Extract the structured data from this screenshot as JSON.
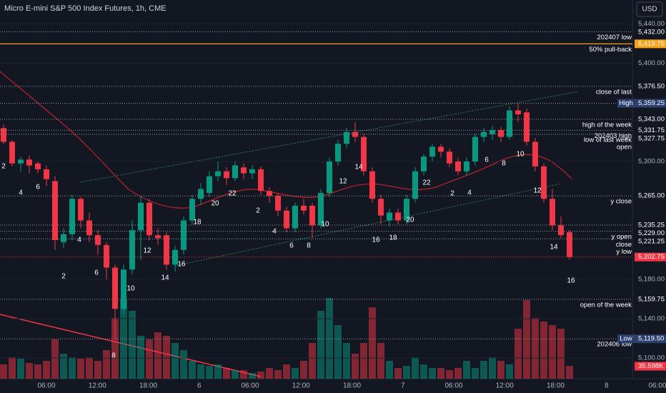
{
  "chart_data": {
    "type": "candlestick",
    "title": "Micro E-mini S&P 500 Index Futures, 1h, CME",
    "currency": "USD",
    "up_color": "#089981",
    "down_color": "#f23645",
    "candles": [
      {
        "open": 5334,
        "high": 5338,
        "low": 5318,
        "close": 5320
      },
      {
        "open": 5320,
        "high": 5322,
        "low": 5295,
        "close": 5298
      },
      {
        "open": 5298,
        "high": 5305,
        "low": 5290,
        "close": 5302
      },
      {
        "open": 5302,
        "high": 5306,
        "low": 5288,
        "close": 5296
      },
      {
        "open": 5298,
        "high": 5300,
        "low": 5288,
        "close": 5292
      },
      {
        "open": 5292,
        "high": 5296,
        "low": 5275,
        "close": 5282
      },
      {
        "open": 5280,
        "high": 5285,
        "low": 5210,
        "close": 5220
      },
      {
        "open": 5218,
        "high": 5232,
        "low": 5212,
        "close": 5226
      },
      {
        "open": 5226,
        "high": 5266,
        "low": 5220,
        "close": 5262
      },
      {
        "open": 5262,
        "high": 5264,
        "low": 5232,
        "close": 5240
      },
      {
        "open": 5240,
        "high": 5248,
        "low": 5218,
        "close": 5225
      },
      {
        "open": 5225,
        "high": 5230,
        "low": 5205,
        "close": 5215
      },
      {
        "open": 5215,
        "high": 5218,
        "low": 5180,
        "close": 5192
      },
      {
        "open": 5192,
        "high": 5195,
        "low": 5119.5,
        "close": 5150
      },
      {
        "open": 5150,
        "high": 5195,
        "low": 5145,
        "close": 5190
      },
      {
        "open": 5190,
        "high": 5240,
        "low": 5185,
        "close": 5230
      },
      {
        "open": 5230,
        "high": 5265,
        "low": 5200,
        "close": 5258
      },
      {
        "open": 5258,
        "high": 5262,
        "low": 5220,
        "close": 5225
      },
      {
        "open": 5225,
        "high": 5232,
        "low": 5215,
        "close": 5222
      },
      {
        "open": 5225,
        "high": 5228,
        "low": 5190,
        "close": 5195
      },
      {
        "open": 5195,
        "high": 5214,
        "low": 5188,
        "close": 5210
      },
      {
        "open": 5210,
        "high": 5244,
        "low": 5205,
        "close": 5240
      },
      {
        "open": 5240,
        "high": 5266,
        "low": 5236,
        "close": 5262
      },
      {
        "open": 5262,
        "high": 5278,
        "low": 5256,
        "close": 5272
      },
      {
        "open": 5268,
        "high": 5290,
        "low": 5264,
        "close": 5285
      },
      {
        "open": 5285,
        "high": 5300,
        "low": 5280,
        "close": 5290
      },
      {
        "open": 5290,
        "high": 5294,
        "low": 5276,
        "close": 5283
      },
      {
        "open": 5283,
        "high": 5300,
        "low": 5280,
        "close": 5296
      },
      {
        "open": 5294,
        "high": 5298,
        "low": 5282,
        "close": 5288
      },
      {
        "open": 5288,
        "high": 5296,
        "low": 5282,
        "close": 5292
      },
      {
        "open": 5292,
        "high": 5295,
        "low": 5266,
        "close": 5270
      },
      {
        "open": 5270,
        "high": 5274,
        "low": 5258,
        "close": 5265
      },
      {
        "open": 5265,
        "high": 5268,
        "low": 5244,
        "close": 5250
      },
      {
        "open": 5250,
        "high": 5254,
        "low": 5228,
        "close": 5232
      },
      {
        "open": 5232,
        "high": 5258,
        "low": 5228,
        "close": 5255
      },
      {
        "open": 5255,
        "high": 5262,
        "low": 5246,
        "close": 5250
      },
      {
        "open": 5255,
        "high": 5258,
        "low": 5222,
        "close": 5235
      },
      {
        "open": 5235,
        "high": 5272,
        "low": 5232,
        "close": 5268
      },
      {
        "open": 5268,
        "high": 5304,
        "low": 5264,
        "close": 5300
      },
      {
        "open": 5300,
        "high": 5322,
        "low": 5296,
        "close": 5318
      },
      {
        "open": 5318,
        "high": 5334,
        "low": 5314,
        "close": 5330
      },
      {
        "open": 5330,
        "high": 5340,
        "low": 5320,
        "close": 5325
      },
      {
        "open": 5325,
        "high": 5328,
        "low": 5286,
        "close": 5290
      },
      {
        "open": 5290,
        "high": 5294,
        "low": 5258,
        "close": 5262
      },
      {
        "open": 5262,
        "high": 5266,
        "low": 5236,
        "close": 5245
      },
      {
        "open": 5240,
        "high": 5252,
        "low": 5234,
        "close": 5248
      },
      {
        "open": 5248,
        "high": 5252,
        "low": 5236,
        "close": 5240
      },
      {
        "open": 5240,
        "high": 5266,
        "low": 5236,
        "close": 5262
      },
      {
        "open": 5262,
        "high": 5294,
        "low": 5258,
        "close": 5290
      },
      {
        "open": 5290,
        "high": 5308,
        "low": 5286,
        "close": 5305
      },
      {
        "open": 5305,
        "high": 5318,
        "low": 5300,
        "close": 5315
      },
      {
        "open": 5315,
        "high": 5318,
        "low": 5304,
        "close": 5310
      },
      {
        "open": 5310,
        "high": 5313,
        "low": 5294,
        "close": 5298
      },
      {
        "open": 5300,
        "high": 5304,
        "low": 5286,
        "close": 5290
      },
      {
        "open": 5290,
        "high": 5304,
        "low": 5286,
        "close": 5300
      },
      {
        "open": 5300,
        "high": 5328,
        "low": 5296,
        "close": 5325
      },
      {
        "open": 5325,
        "high": 5334,
        "low": 5320,
        "close": 5330
      },
      {
        "open": 5328,
        "high": 5336,
        "low": 5322,
        "close": 5332
      },
      {
        "open": 5332,
        "high": 5335,
        "low": 5320,
        "close": 5325
      },
      {
        "open": 5325,
        "high": 5356,
        "low": 5322,
        "close": 5352
      },
      {
        "open": 5352,
        "high": 5359.25,
        "low": 5340,
        "close": 5348
      },
      {
        "open": 5350,
        "high": 5354,
        "low": 5316,
        "close": 5320
      },
      {
        "open": 5320,
        "high": 5324,
        "low": 5290,
        "close": 5295
      },
      {
        "open": 5295,
        "high": 5298,
        "low": 5258,
        "close": 5262
      },
      {
        "open": 5262,
        "high": 5272,
        "low": 5230,
        "close": 5235
      },
      {
        "open": 5235,
        "high": 5244,
        "low": 5222,
        "close": 5225
      },
      {
        "open": 5228,
        "high": 5230,
        "low": 5200,
        "close": 5202.75
      }
    ],
    "volume": [
      40,
      60,
      56,
      44,
      40,
      50,
      110,
      70,
      60,
      56,
      60,
      50,
      80,
      170,
      220,
      190,
      120,
      110,
      130,
      120,
      100,
      80,
      50,
      40,
      36,
      40,
      30,
      24,
      24,
      16,
      20,
      30,
      24,
      40,
      30,
      50,
      100,
      190,
      226,
      150,
      100,
      70,
      100,
      200,
      100,
      50,
      30,
      36,
      60,
      40,
      30,
      30,
      24,
      30,
      50,
      30,
      50,
      60,
      50,
      40,
      140,
      220,
      170,
      160,
      150,
      140,
      35.598
    ],
    "volume_label": "35.598K",
    "yticks": [
      {
        "value": 5440,
        "label": "5,440.00"
      },
      {
        "value": 5400,
        "label": "5,400.00"
      },
      {
        "value": 5300,
        "label": "5,300.00"
      },
      {
        "value": 5180,
        "label": "5,180.00"
      },
      {
        "value": 5140,
        "label": "5,140.00"
      },
      {
        "value": 5100,
        "label": "5,100.00"
      }
    ],
    "levels": [
      {
        "value": 5432,
        "label": "5,432.00",
        "notes": [
          "202407 low"
        ]
      },
      {
        "value": 5419.75,
        "label": "5,419.75",
        "notes": [
          "50% pull-back"
        ],
        "color": "#f7a21b"
      },
      {
        "value": 5376.5,
        "label": "5,376.50",
        "notes": [
          "close of last"
        ]
      },
      {
        "value": 5359.25,
        "label": "5,359.25",
        "tag": "High",
        "color": "#2a3f6e"
      },
      {
        "value": 5343,
        "label": "5,343.00",
        "notes": [
          "high of the week"
        ]
      },
      {
        "value": 5331.75,
        "label": "5,331.75",
        "notes": [
          "202403 high"
        ]
      },
      {
        "value": 5327.75,
        "label": "5,327.75",
        "notes": [
          "low of last week",
          "open"
        ]
      },
      {
        "value": 5265,
        "label": "5,265.00",
        "notes": [
          "y close"
        ]
      },
      {
        "value": 5235.25,
        "label": "5,235.25"
      },
      {
        "value": 5229,
        "label": "5,229.00",
        "notes": [
          "y open"
        ]
      },
      {
        "value": 5221.25,
        "label": "5,221.25",
        "notes": [
          "close",
          "y low"
        ]
      },
      {
        "value": 5202.75,
        "label": "5,202.75",
        "color": "#f23645"
      },
      {
        "value": 5159.75,
        "label": "5,159.75",
        "notes": [
          "open of the week"
        ]
      },
      {
        "value": 5119.5,
        "label": "5,119.50",
        "tag": "Low",
        "color": "#2a3f6e",
        "notes": [
          "202406 low"
        ]
      }
    ],
    "annotations": [
      2,
      4,
      6,
      2,
      4,
      6,
      8,
      10,
      12,
      14,
      16,
      18,
      20,
      22,
      2,
      4,
      6,
      8,
      10,
      12,
      14,
      16,
      18,
      20,
      22,
      2,
      4,
      6,
      8,
      10,
      12,
      14,
      16
    ],
    "xaxis_labels": [
      "06:00",
      "12:00",
      "18:00",
      "6",
      "06:00",
      "12:00",
      "18:00",
      "7",
      "06:00",
      "12:00",
      "18:00",
      "8",
      "06:00"
    ]
  }
}
